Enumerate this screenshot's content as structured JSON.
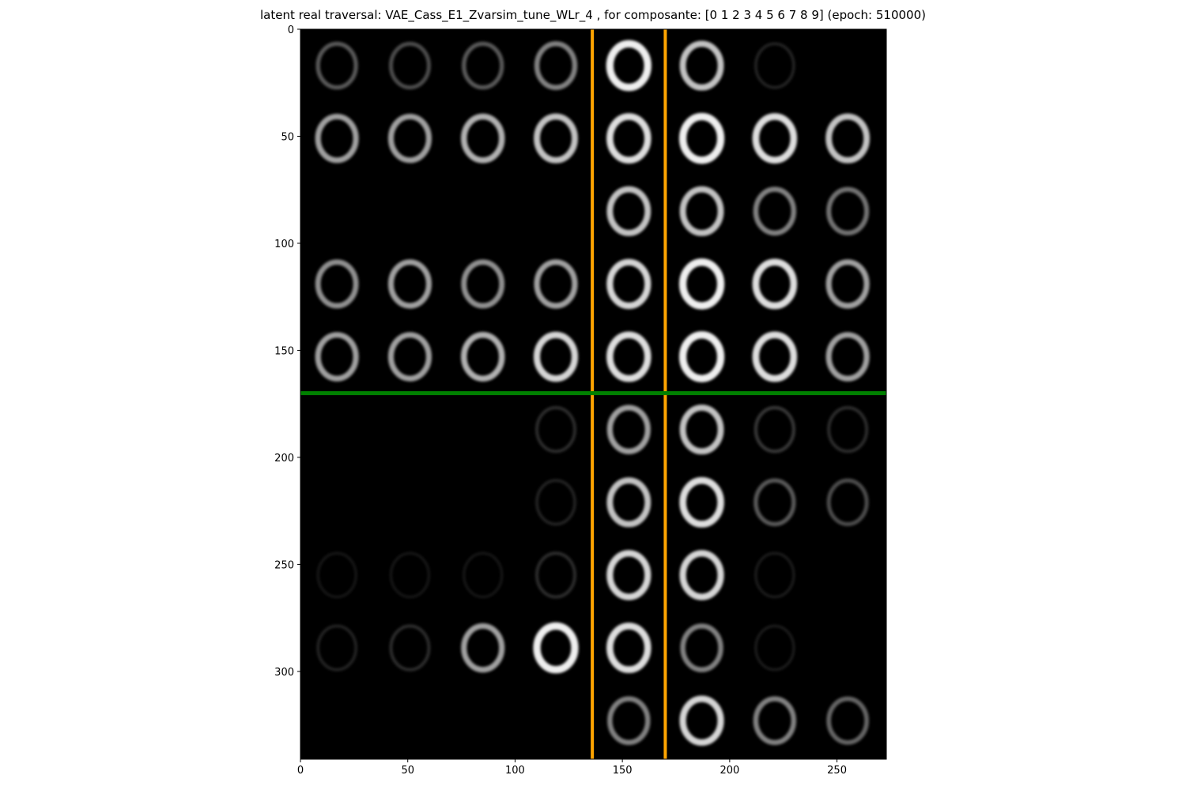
{
  "chart_data": {
    "type": "heatmap",
    "title": "latent real traversal: VAE_Cass_E1_Zvarsim_tune_WLr_4 , for composante: [0 1 2 3 4 5 6 7 8 9] (epoch: 510000)",
    "xlabel": "",
    "ylabel": "",
    "xlim": [
      0,
      273
    ],
    "ylim": [
      341,
      0
    ],
    "x_ticks": [
      0,
      50,
      100,
      150,
      200,
      250
    ],
    "y_ticks": [
      0,
      50,
      100,
      150,
      200,
      250,
      300
    ],
    "grid": false,
    "image": {
      "description_rows": 10,
      "description_cols": 8,
      "cell_size": 34,
      "cells": [
        [
          0.35,
          0.3,
          0.35,
          0.5,
          0.9,
          0.7,
          0.1,
          0.0
        ],
        [
          0.6,
          0.6,
          0.65,
          0.7,
          0.8,
          0.9,
          0.8,
          0.7
        ],
        [
          0.0,
          0.0,
          0.0,
          0.0,
          0.7,
          0.7,
          0.5,
          0.45
        ],
        [
          0.55,
          0.6,
          0.55,
          0.6,
          0.75,
          0.9,
          0.8,
          0.6
        ],
        [
          0.6,
          0.6,
          0.65,
          0.75,
          0.8,
          0.9,
          0.8,
          0.6
        ],
        [
          0.0,
          0.0,
          0.0,
          0.15,
          0.6,
          0.7,
          0.2,
          0.15
        ],
        [
          0.0,
          0.0,
          0.0,
          0.1,
          0.7,
          0.8,
          0.35,
          0.3
        ],
        [
          0.02,
          0.02,
          0.02,
          0.15,
          0.75,
          0.75,
          0.05,
          0.0
        ],
        [
          0.1,
          0.15,
          0.6,
          0.9,
          0.8,
          0.5,
          0.05,
          0.0
        ],
        [
          0.0,
          0.0,
          0.0,
          0.0,
          0.5,
          0.75,
          0.5,
          0.4
        ]
      ]
    },
    "overlays": {
      "vertical_lines": [
        {
          "x": 136,
          "color": "#ffa500"
        },
        {
          "x": 170,
          "color": "#ffa500"
        }
      ],
      "horizontal_lines": [
        {
          "y": 170,
          "color": "#008000"
        }
      ]
    }
  }
}
